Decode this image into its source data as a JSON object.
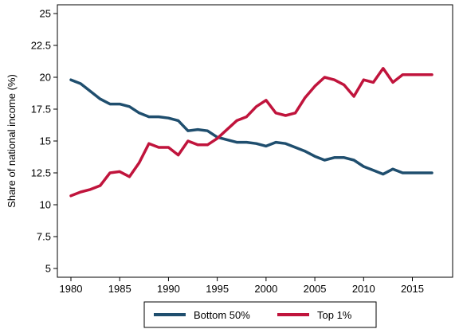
{
  "chart_data": {
    "type": "line",
    "title": "",
    "xlabel": "",
    "ylabel": "Share of national income (%)",
    "xlim": [
      1980,
      2017
    ],
    "ylim": [
      5,
      25
    ],
    "x_ticks": [
      1980,
      1985,
      1990,
      1995,
      2000,
      2005,
      2010,
      2015
    ],
    "y_ticks": [
      5,
      7.5,
      10,
      12.5,
      15,
      17.5,
      20,
      22.5,
      25
    ],
    "x_tick_labels": [
      "1980",
      "1985",
      "1990",
      "1995",
      "2000",
      "2005",
      "2010",
      "2015"
    ],
    "y_tick_labels": [
      "5",
      "7.5",
      "10",
      "12.5",
      "15",
      "17.5",
      "20",
      "22.5",
      "25"
    ],
    "grid": false,
    "legend_position": "bottom",
    "x": [
      1980,
      1981,
      1982,
      1983,
      1984,
      1985,
      1986,
      1987,
      1988,
      1989,
      1990,
      1991,
      1992,
      1993,
      1994,
      1995,
      1996,
      1997,
      1998,
      1999,
      2000,
      2001,
      2002,
      2003,
      2004,
      2005,
      2006,
      2007,
      2008,
      2009,
      2010,
      2011,
      2012,
      2013,
      2014,
      2015,
      2016,
      2017
    ],
    "series": [
      {
        "name": "Bottom 50%",
        "color": "#1f4e6e",
        "values": [
          19.8,
          19.5,
          18.9,
          18.3,
          17.9,
          17.9,
          17.7,
          17.2,
          16.9,
          16.9,
          16.8,
          16.6,
          15.8,
          15.9,
          15.8,
          15.3,
          15.1,
          14.9,
          14.9,
          14.8,
          14.6,
          14.9,
          14.8,
          14.5,
          14.2,
          13.8,
          13.5,
          13.7,
          13.7,
          13.5,
          13.0,
          12.7,
          12.4,
          12.8,
          12.5,
          12.5,
          12.5,
          12.5
        ]
      },
      {
        "name": "Top 1%",
        "color": "#c0143c",
        "values": [
          10.7,
          11.0,
          11.2,
          11.5,
          12.5,
          12.6,
          12.2,
          13.3,
          14.8,
          14.5,
          14.5,
          13.9,
          15.0,
          14.7,
          14.7,
          15.2,
          15.9,
          16.6,
          16.9,
          17.7,
          18.2,
          17.2,
          17.0,
          17.2,
          18.4,
          19.3,
          20.0,
          19.8,
          19.4,
          18.5,
          19.8,
          19.6,
          20.7,
          19.6,
          20.2,
          20.2,
          20.2,
          20.2
        ]
      }
    ]
  }
}
